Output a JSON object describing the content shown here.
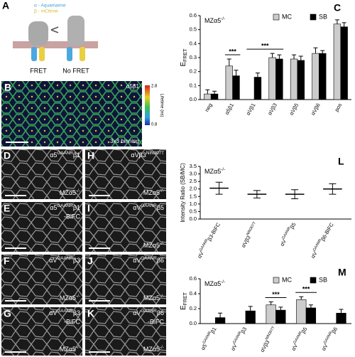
{
  "panel_a": {
    "letter": "A",
    "legend_alpha": "α - Aquamarine",
    "legend_beta": "β - mCitrine",
    "left_label": "FRET",
    "right_label": "No FRET"
  },
  "panel_b": {
    "letter": "B",
    "label": "α5β1",
    "binning": "3x3 binning",
    "colorbar_title": "Lifetime (ns)",
    "colorbar_top": "2.8",
    "colorbar_bottom": "0.8"
  },
  "micrographs": [
    {
      "letter": "D",
      "label": [
        {
          "text": "α5"
        },
        {
          "sup": "GAANR"
        },
        {
          "text": "β1"
        }
      ],
      "genotype": [
        {
          "text": "MZα5"
        },
        {
          "sup": "-/-"
        }
      ]
    },
    {
      "letter": "E",
      "label": [
        {
          "text": "α5"
        },
        {
          "sup": "GAANR"
        },
        {
          "text": "β1"
        }
      ],
      "line2": "-BiFC"
    },
    {
      "letter": "F",
      "label": [
        {
          "text": "αV"
        },
        {
          "sup": "GAANR"
        },
        {
          "text": "β3"
        }
      ],
      "genotype": [
        {
          "text": "MZα5"
        },
        {
          "sup": "-/-"
        }
      ]
    },
    {
      "letter": "G",
      "label": [
        {
          "text": "αV"
        },
        {
          "sup": "GAANR"
        },
        {
          "text": "β3"
        }
      ],
      "line2": "-BiFC",
      "genotype": [
        {
          "text": "MZα5"
        },
        {
          "sup": "-/-"
        }
      ]
    },
    {
      "letter": "H",
      "label": [
        {
          "text": "αVβ3"
        },
        {
          "sup": "NIN307T"
        }
      ],
      "genotype": [
        {
          "text": "MZα5"
        },
        {
          "sup": "-/-"
        }
      ]
    },
    {
      "letter": "I",
      "label": [
        {
          "text": "αV"
        },
        {
          "sup": "GAANR"
        },
        {
          "text": "β5"
        }
      ],
      "genotype": [
        {
          "text": "MZα5"
        },
        {
          "sup": "-/-"
        }
      ]
    },
    {
      "letter": "J",
      "label": [
        {
          "text": "αV"
        },
        {
          "sup": "GAANR"
        },
        {
          "text": "β6"
        }
      ],
      "genotype": [
        {
          "text": "MZα5"
        },
        {
          "sup": "-/-"
        }
      ]
    },
    {
      "letter": "K",
      "label": [
        {
          "text": "αV"
        },
        {
          "sup": "GAANR"
        },
        {
          "text": "β6"
        }
      ],
      "line2": "-BiFC",
      "genotype": [
        {
          "text": "MZα5"
        },
        {
          "sup": "-/-"
        }
      ]
    }
  ],
  "chart_data": [
    {
      "type": "bar",
      "letter": "C",
      "annotation": [
        {
          "text": "MZα5"
        },
        {
          "sup": "-/-"
        }
      ],
      "y_label": [
        {
          "text": "E"
        },
        {
          "sub": "FRET"
        }
      ],
      "categories": [
        "neg",
        "α5β1",
        "αVβ1",
        "αVβ3",
        "αVβ5",
        "αVβ6",
        "pos"
      ],
      "series": [
        {
          "name": "MC",
          "color": "#cccccc",
          "values": [
            0.04,
            0.24,
            null,
            0.3,
            0.29,
            0.33,
            0.54
          ],
          "errors": [
            0.03,
            0.05,
            null,
            0.03,
            0.03,
            0.04,
            0.03
          ]
        },
        {
          "name": "SB",
          "color": "#000000",
          "values": [
            0.04,
            0.17,
            0.16,
            0.29,
            0.28,
            0.33,
            0.52
          ],
          "errors": [
            0.02,
            0.04,
            0.03,
            0.03,
            0.03,
            0.02,
            0.03
          ]
        }
      ],
      "ylim": [
        0,
        0.6
      ],
      "yticks": [
        {
          "value": 0,
          "label": "0.0"
        },
        0.1,
        0.2,
        0.3,
        0.4,
        0.5,
        0.6
      ],
      "legend": "top-right",
      "significance": [
        {
          "text": "***",
          "categories": [
            1
          ]
        },
        {
          "text": "***",
          "categories": [
            2,
            3
          ]
        }
      ]
    },
    {
      "type": "dot",
      "letter": "L",
      "annotation": [
        {
          "text": "MZα5"
        },
        {
          "sup": "-/-"
        }
      ],
      "y_label": [
        {
          "text": "Intensity Ratio (SB/MC)"
        }
      ],
      "categories": [
        [
          {
            "text": "αV"
          },
          {
            "sup": "GAANR"
          },
          {
            "text": "β3-BIFC"
          }
        ],
        [
          {
            "text": "αVβ3"
          },
          {
            "sup": "NIN307T"
          }
        ],
        [
          {
            "text": "αV"
          },
          {
            "sup": "GAANR"
          },
          {
            "text": "β5"
          }
        ],
        [
          {
            "text": "αV"
          },
          {
            "sup": "GAANR"
          },
          {
            "text": "β6-BIFC"
          }
        ]
      ],
      "series": [
        {
          "color": "#000000",
          "values": [
            2.05,
            1.65,
            1.65,
            2.0
          ],
          "errors": [
            0.4,
            0.25,
            0.3,
            0.35
          ]
        }
      ],
      "ylim": [
        0,
        3.5
      ],
      "yticks": [
        {
          "value": 0,
          "label": "0.0"
        },
        0.5,
        {
          "value": 1,
          "label": "1.0"
        },
        1.5,
        {
          "value": 2,
          "label": "2.0"
        },
        2.5,
        {
          "value": 3,
          "label": "3.0"
        },
        3.5
      ]
    },
    {
      "type": "bar",
      "letter": "M",
      "annotation": [
        {
          "text": "MZα5"
        },
        {
          "sup": "-/-"
        }
      ],
      "y_label": [
        {
          "text": "E"
        },
        {
          "sub": "FRET"
        }
      ],
      "categories": [
        [
          {
            "text": "α5"
          },
          {
            "sup": "GAANR"
          },
          {
            "text": "β1"
          }
        ],
        [
          {
            "text": "αV"
          },
          {
            "sup": "GAANR"
          },
          {
            "text": "β3"
          }
        ],
        [
          {
            "text": "αVβ3"
          },
          {
            "sup": "NIN307T"
          }
        ],
        [
          {
            "text": "αV"
          },
          {
            "sup": "GAANR"
          },
          {
            "text": "β5"
          }
        ],
        [
          {
            "text": "αV"
          },
          {
            "sup": "GAANR"
          },
          {
            "text": "β6"
          }
        ]
      ],
      "series": [
        {
          "name": "MC",
          "color": "#cccccc",
          "values": [
            null,
            null,
            0.25,
            0.32,
            null
          ],
          "errors": [
            null,
            null,
            0.04,
            0.04,
            null
          ]
        },
        {
          "name": "SB",
          "color": "#000000",
          "values": [
            0.08,
            0.17,
            0.18,
            0.21,
            0.14
          ],
          "errors": [
            0.06,
            0.06,
            0.04,
            0.04,
            0.05
          ]
        }
      ],
      "ylim": [
        0,
        0.6
      ],
      "yticks": [
        {
          "value": 0,
          "label": "0.0"
        },
        0.2,
        0.4,
        0.6
      ],
      "legend": "top-right",
      "significance": [
        {
          "text": "***",
          "categories": [
            2
          ]
        },
        {
          "text": "***",
          "categories": [
            3
          ]
        }
      ]
    }
  ]
}
